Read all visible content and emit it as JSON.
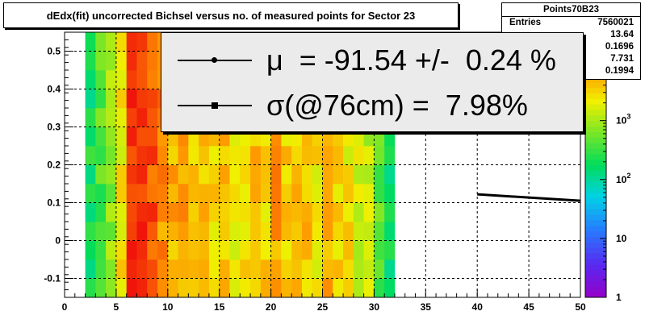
{
  "chart_data": {
    "type": "heatmap",
    "title": "dEdx(fit) uncorrected Bichsel versus no. of measured points for Sector 23",
    "xlim": [
      0,
      50
    ],
    "ylim": [
      -0.15,
      0.55
    ],
    "x_ticks": [
      "0",
      "5",
      "10",
      "15",
      "20",
      "25",
      "30",
      "35",
      "40",
      "45",
      "50"
    ],
    "y_ticks": [
      "-0.1",
      "0",
      "0.1",
      "0.2",
      "0.3",
      "0.4",
      "0.5"
    ],
    "z_scale": "log",
    "z_ticks": [
      "1",
      "10",
      "10^2",
      "10^3"
    ],
    "grid": true,
    "bins_x_range": [
      2,
      32
    ],
    "columns": [
      {
        "x": [
          2,
          3
        ],
        "z": 2.3
      },
      {
        "x": [
          3,
          4
        ],
        "z": 2.6
      },
      {
        "x": [
          4,
          5
        ],
        "z": 2.9
      },
      {
        "x": [
          5,
          6
        ],
        "z": 3.4
      },
      {
        "x": [
          6,
          7
        ],
        "z": 4.4
      },
      {
        "x": [
          7,
          8
        ],
        "z": 4.3
      },
      {
        "x": [
          8,
          9
        ],
        "z": 4.2
      },
      {
        "x": [
          9,
          10
        ],
        "z": 3.9
      },
      {
        "x": [
          10,
          11
        ],
        "z": 3.7
      },
      {
        "x": [
          11,
          12
        ],
        "z": 3.8
      },
      {
        "x": [
          12,
          13
        ],
        "z": 3.5
      },
      {
        "x": [
          13,
          14
        ],
        "z": 3.6
      },
      {
        "x": [
          14,
          15
        ],
        "z": 3.5
      },
      {
        "x": [
          15,
          16
        ],
        "z": 3.6
      },
      {
        "x": [
          16,
          17
        ],
        "z": 3.3
      },
      {
        "x": [
          17,
          18
        ],
        "z": 3.4
      },
      {
        "x": [
          18,
          19
        ],
        "z": 3.6
      },
      {
        "x": [
          19,
          20
        ],
        "z": 3.5
      },
      {
        "x": [
          20,
          21
        ],
        "z": 3.8
      },
      {
        "x": [
          21,
          22
        ],
        "z": 3.5
      },
      {
        "x": [
          22,
          23
        ],
        "z": 3.6
      },
      {
        "x": [
          23,
          24
        ],
        "z": 3.6
      },
      {
        "x": [
          24,
          25
        ],
        "z": 3.4
      },
      {
        "x": [
          25,
          26
        ],
        "z": 3.7
      },
      {
        "x": [
          26,
          27
        ],
        "z": 3.5
      },
      {
        "x": [
          27,
          28
        ],
        "z": 3.4
      },
      {
        "x": [
          28,
          29
        ],
        "z": 3.2
      },
      {
        "x": [
          29,
          30
        ],
        "z": 3.1
      },
      {
        "x": [
          30,
          31
        ],
        "z": 2.6
      },
      {
        "x": [
          31,
          32
        ],
        "z": 2.3
      }
    ],
    "fit_line": {
      "x": [
        40,
        50
      ],
      "y": [
        0.122,
        0.105
      ]
    },
    "stats": {
      "name": "Points70B23",
      "rows": [
        {
          "label": "Entries",
          "value": "7560021"
        },
        {
          "label": "",
          "value": "13.64"
        },
        {
          "label": "",
          "value": "0.1696"
        },
        {
          "label": "",
          "value": "7.731"
        },
        {
          "label": "",
          "value": "0.1994"
        }
      ]
    },
    "legend": [
      {
        "marker": "circle",
        "text": "μ  = -91.54 +/-  0.24 %"
      },
      {
        "marker": "square",
        "text": "σ(@76cm) =  7.98%"
      }
    ]
  }
}
